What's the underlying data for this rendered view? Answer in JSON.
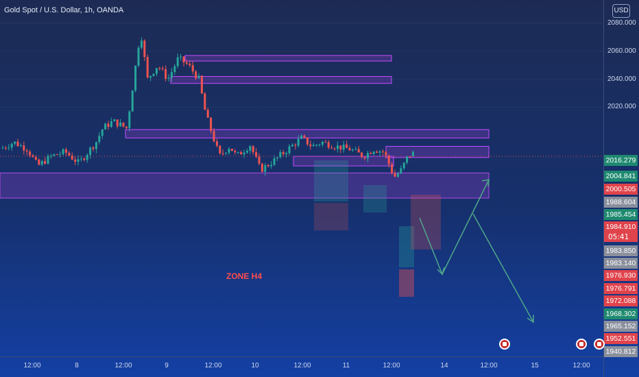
{
  "header": {
    "title": "Gold Spot / U.S. Dollar, 1h, OANDA",
    "currency": "USD",
    "zone_label": "ZONE H4"
  },
  "colors": {
    "up": "#26a69a",
    "down": "#ef5350",
    "zone_border": "#c44bff",
    "arrow": "#4fa88a"
  },
  "chart_data": {
    "type": "candlestick",
    "y_axis": {
      "range": [
        1936,
        2090
      ],
      "ticks": [
        "2080.000",
        "2060.000",
        "2040.000",
        "2020.000"
      ]
    },
    "x_axis": {
      "ticks": [
        "12:00",
        "8",
        "12:00",
        "9",
        "12:00",
        "10",
        "12:00",
        "11",
        "12:00",
        "14",
        "12:00",
        "15",
        "12:00"
      ]
    },
    "price_labels": [
      {
        "text": "2016.279",
        "value": 2016.279,
        "bg": "#1f8a70"
      },
      {
        "text": "2004.841",
        "value": 2004.841,
        "bg": "#1f8a70"
      },
      {
        "text": "2000.505",
        "value": 2000.505,
        "bg": "#e0434b"
      },
      {
        "text": "1988.604",
        "value": 1988.604,
        "bg": "#8a8f9c"
      },
      {
        "text": "1985.454",
        "value": 1985.454,
        "bg": "#1f8a70"
      },
      {
        "text": "1984.910",
        "value": 1984.91,
        "bg": "#e0434b"
      },
      {
        "text": "1983.850",
        "value": 1983.85,
        "bg": "#8a8f9c"
      },
      {
        "text": "1983.140",
        "value": 1983.14,
        "bg": "#8a8f9c"
      },
      {
        "text": "1976.930",
        "value": 1976.93,
        "bg": "#e0434b"
      },
      {
        "text": "1976.791",
        "value": 1976.791,
        "bg": "#e0434b"
      },
      {
        "text": "1972.088",
        "value": 1972.088,
        "bg": "#e0434b"
      },
      {
        "text": "1968.302",
        "value": 1968.302,
        "bg": "#1f8a70"
      },
      {
        "text": "1965.152",
        "value": 1965.152,
        "bg": "#8a8f9c"
      },
      {
        "text": "1952.551",
        "value": 1952.551,
        "bg": "#e0434b"
      },
      {
        "text": "1940.812",
        "value": 1940.812,
        "bg": "#8a8f9c"
      }
    ],
    "countdown": "05:41",
    "zones": [
      {
        "y1": 2057,
        "y2": 2053
      },
      {
        "y1": 2042,
        "y2": 2037
      },
      {
        "y1": 2004,
        "y2": 1998
      },
      {
        "y1": 1992,
        "y2": 1984
      },
      {
        "y1": 1984.9,
        "y2": 1978
      },
      {
        "y1": 1973,
        "y2": 1955,
        "label": "ZONE H4"
      }
    ]
  }
}
